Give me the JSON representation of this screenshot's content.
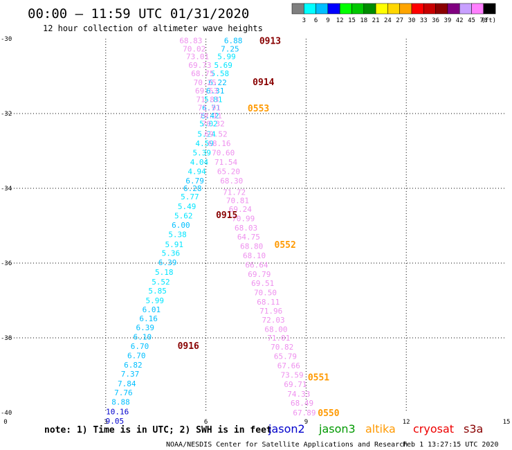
{
  "header": {
    "title": "00:00 – 11:59 UTC 01/31/2020",
    "subtitle": "12 hour collection of altimeter wave heights"
  },
  "colorbar": {
    "colors": [
      "#7f7f7f",
      "#00ffff",
      "#00bfff",
      "#0000ff",
      "#00ff00",
      "#00c800",
      "#008c00",
      "#ffff00",
      "#ffd700",
      "#ffa500",
      "#ff0000",
      "#c80000",
      "#8b0000",
      "#800080",
      "#c8a0ff",
      "#ff80ff",
      "#000000"
    ],
    "labels": [
      "3",
      "6",
      "9",
      "12",
      "15",
      "18",
      "21",
      "24",
      "27",
      "30",
      "33",
      "36",
      "39",
      "42",
      "45",
      "70"
    ],
    "unit": "(ft)"
  },
  "footer": {
    "note": "note: 1) Time is in UTC; 2) SWH is in feet",
    "legend": [
      {
        "name": "jason2",
        "color": "#0000cc"
      },
      {
        "name": "jason3",
        "color": "#009900"
      },
      {
        "name": "altika",
        "color": "#ff9900"
      },
      {
        "name": "cryosat",
        "color": "#ee0000"
      },
      {
        "name": "s3a",
        "color": "#880000"
      }
    ],
    "credit": "NOAA/NESDIS Center for Satellite Applications and Research",
    "timestamp": "Feb  1 13:27:15 UTC 2020"
  },
  "chart_data": {
    "type": "scatter",
    "x_ticks": [
      "0",
      "3",
      "6",
      "9",
      "12",
      "15"
    ],
    "y_ticks": [
      "-30",
      "-32",
      "-34",
      "-36",
      "-38",
      "-40"
    ],
    "xlim": [
      0,
      15
    ],
    "ylim": [
      -40,
      -30
    ],
    "grid": true,
    "labels": [
      {
        "x": 7.6,
        "y": -30.05,
        "text": "0913",
        "color": "#880000"
      },
      {
        "x": 7.4,
        "y": -31.15,
        "text": "0914",
        "color": "#880000"
      },
      {
        "x": 7.25,
        "y": -31.85,
        "text": "0553",
        "color": "#ff9900"
      },
      {
        "x": 6.3,
        "y": -34.7,
        "text": "0915",
        "color": "#880000"
      },
      {
        "x": 8.05,
        "y": -35.5,
        "text": "0552",
        "color": "#ff9900"
      },
      {
        "x": 5.15,
        "y": -38.2,
        "text": "0916",
        "color": "#880000"
      },
      {
        "x": 9.05,
        "y": -39.05,
        "text": "0551",
        "color": "#ff9900"
      },
      {
        "x": 9.35,
        "y": -40.0,
        "text": "0550",
        "color": "#ff9900"
      }
    ],
    "series": [
      {
        "name": "",
        "points": [
          {
            "x": 6.82,
            "y": -30.05,
            "v": "6.88",
            "c": "#00bfff"
          },
          {
            "x": 6.72,
            "y": -30.27,
            "v": "7.25",
            "c": "#00bfff"
          },
          {
            "x": 6.62,
            "y": -30.47,
            "v": "5.99",
            "c": "#00e5ff"
          },
          {
            "x": 6.52,
            "y": -30.7,
            "v": "5.69",
            "c": "#00e5ff"
          },
          {
            "x": 6.42,
            "y": -30.93,
            "v": "5.58",
            "c": "#00e5ff"
          },
          {
            "x": 6.35,
            "y": -31.17,
            "v": "6.22",
            "c": "#00bfff"
          },
          {
            "x": 6.28,
            "y": -31.39,
            "v": "6.31",
            "c": "#00bfff"
          },
          {
            "x": 6.22,
            "y": -31.62,
            "v": "5.81",
            "c": "#00e5ff"
          },
          {
            "x": 6.16,
            "y": -31.84,
            "v": "6.71",
            "c": "#00bfff"
          },
          {
            "x": 6.12,
            "y": -32.06,
            "v": "6.42",
            "c": "#00bfff"
          },
          {
            "x": 6.08,
            "y": -32.27,
            "v": "5.02",
            "c": "#00e5ff"
          },
          {
            "x": 6.02,
            "y": -32.55,
            "v": "5.24",
            "c": "#00e5ff"
          },
          {
            "x": 5.96,
            "y": -32.8,
            "v": "4.59",
            "c": "#00e5ff"
          },
          {
            "x": 5.88,
            "y": -33.05,
            "v": "5.39",
            "c": "#00e5ff"
          },
          {
            "x": 5.8,
            "y": -33.3,
            "v": "4.04",
            "c": "#00e5ff"
          },
          {
            "x": 5.73,
            "y": -33.55,
            "v": "4.94",
            "c": "#00e5ff"
          },
          {
            "x": 5.67,
            "y": -33.8,
            "v": "6.79",
            "c": "#00bfff"
          },
          {
            "x": 5.6,
            "y": -34.0,
            "v": "6.28",
            "c": "#00bfff"
          },
          {
            "x": 5.52,
            "y": -34.22,
            "v": "5.77",
            "c": "#00e5ff"
          },
          {
            "x": 5.43,
            "y": -34.48,
            "v": "5.49",
            "c": "#00e5ff"
          },
          {
            "x": 5.33,
            "y": -34.73,
            "v": "5.62",
            "c": "#00e5ff"
          },
          {
            "x": 5.25,
            "y": -34.98,
            "v": "6.00",
            "c": "#00bfff"
          },
          {
            "x": 5.15,
            "y": -35.23,
            "v": "5.38",
            "c": "#00e5ff"
          },
          {
            "x": 5.05,
            "y": -35.5,
            "v": "5.91",
            "c": "#00e5ff"
          },
          {
            "x": 4.95,
            "y": -35.73,
            "v": "5.36",
            "c": "#00e5ff"
          },
          {
            "x": 4.85,
            "y": -35.98,
            "v": "6.39",
            "c": "#00bfff"
          },
          {
            "x": 4.75,
            "y": -36.24,
            "v": "5.18",
            "c": "#00e5ff"
          },
          {
            "x": 4.65,
            "y": -36.5,
            "v": "5.52",
            "c": "#00e5ff"
          },
          {
            "x": 4.55,
            "y": -36.74,
            "v": "5.85",
            "c": "#00e5ff"
          },
          {
            "x": 4.47,
            "y": -37.0,
            "v": "5.99",
            "c": "#00e5ff"
          },
          {
            "x": 4.37,
            "y": -37.24,
            "v": "6.01",
            "c": "#00bfff"
          },
          {
            "x": 4.28,
            "y": -37.48,
            "v": "6.16",
            "c": "#00bfff"
          },
          {
            "x": 4.18,
            "y": -37.72,
            "v": "6.39",
            "c": "#00bfff"
          },
          {
            "x": 4.1,
            "y": -37.97,
            "v": "6.10",
            "c": "#00bfff"
          },
          {
            "x": 4.02,
            "y": -38.22,
            "v": "6.70",
            "c": "#00bfff"
          },
          {
            "x": 3.92,
            "y": -38.47,
            "v": "6.70",
            "c": "#00bfff"
          },
          {
            "x": 3.82,
            "y": -38.72,
            "v": "6.82",
            "c": "#00bfff"
          },
          {
            "x": 3.73,
            "y": -38.96,
            "v": "7.37",
            "c": "#00bfff"
          },
          {
            "x": 3.63,
            "y": -39.22,
            "v": "7.84",
            "c": "#00bfff"
          },
          {
            "x": 3.53,
            "y": -39.46,
            "v": "7.76",
            "c": "#00bfff"
          },
          {
            "x": 3.45,
            "y": -39.71,
            "v": "8.88",
            "c": "#00bfff"
          },
          {
            "x": 3.35,
            "y": -39.97,
            "v": "10.16",
            "c": "#0000cc"
          },
          {
            "x": 3.27,
            "y": -40.22,
            "v": "9.05",
            "c": "#0000cc"
          }
        ]
      },
      {
        "name": "",
        "points": [
          {
            "x": 5.55,
            "y": -30.05,
            "v": "68.83",
            "c": "#ee90ee"
          },
          {
            "x": 5.65,
            "y": -30.27,
            "v": "70.02",
            "c": "#ee90ee"
          },
          {
            "x": 5.75,
            "y": -30.47,
            "v": "73.01",
            "c": "#ee90ee"
          },
          {
            "x": 5.82,
            "y": -30.7,
            "v": "69.73",
            "c": "#ee90ee"
          },
          {
            "x": 5.9,
            "y": -30.93,
            "v": "68.75",
            "c": "#ee90ee"
          },
          {
            "x": 5.97,
            "y": -31.17,
            "v": "70.25",
            "c": "#ee90ee"
          },
          {
            "x": 6.02,
            "y": -31.39,
            "v": "69.53",
            "c": "#ee90ee"
          },
          {
            "x": 6.05,
            "y": -31.62,
            "v": "71.83",
            "c": "#ee90ee"
          },
          {
            "x": 6.1,
            "y": -31.84,
            "v": "71.91",
            "c": "#ee90ee"
          },
          {
            "x": 6.14,
            "y": -32.06,
            "v": "70.11",
            "c": "#ee90ee"
          },
          {
            "x": 6.22,
            "y": -32.27,
            "v": "70.32",
            "c": "#ee90ee"
          },
          {
            "x": 6.3,
            "y": -32.55,
            "v": "69.52",
            "c": "#ee90ee"
          },
          {
            "x": 6.4,
            "y": -32.8,
            "v": "68.16",
            "c": "#ee90ee"
          },
          {
            "x": 6.52,
            "y": -33.05,
            "v": "70.60",
            "c": "#ee90ee"
          },
          {
            "x": 6.6,
            "y": -33.3,
            "v": "71.54",
            "c": "#ee90ee"
          },
          {
            "x": 6.68,
            "y": -33.55,
            "v": "65.20",
            "c": "#ee90ee"
          },
          {
            "x": 6.77,
            "y": -33.8,
            "v": "68.30",
            "c": "#ee90ee"
          },
          {
            "x": 6.85,
            "y": -34.1,
            "v": "71.72",
            "c": "#ee90ee"
          },
          {
            "x": 6.95,
            "y": -34.32,
            "v": "70.81",
            "c": "#ee90ee"
          },
          {
            "x": 7.03,
            "y": -34.56,
            "v": "69.24",
            "c": "#ee90ee"
          },
          {
            "x": 7.12,
            "y": -34.81,
            "v": "70.99",
            "c": "#ee90ee"
          },
          {
            "x": 7.2,
            "y": -35.06,
            "v": "68.03",
            "c": "#ee90ee"
          },
          {
            "x": 7.28,
            "y": -35.3,
            "v": "64.75",
            "c": "#ee90ee"
          },
          {
            "x": 7.37,
            "y": -35.55,
            "v": "68.80",
            "c": "#ee90ee"
          },
          {
            "x": 7.45,
            "y": -35.8,
            "v": "68.10",
            "c": "#ee90ee"
          },
          {
            "x": 7.52,
            "y": -36.05,
            "v": "66.64",
            "c": "#ee90ee"
          },
          {
            "x": 7.6,
            "y": -36.3,
            "v": "69.79",
            "c": "#ee90ee"
          },
          {
            "x": 7.7,
            "y": -36.54,
            "v": "69.51",
            "c": "#ee90ee"
          },
          {
            "x": 7.78,
            "y": -36.79,
            "v": "70.50",
            "c": "#ee90ee"
          },
          {
            "x": 7.87,
            "y": -37.04,
            "v": "68.11",
            "c": "#ee90ee"
          },
          {
            "x": 7.95,
            "y": -37.28,
            "v": "71.96",
            "c": "#ee90ee"
          },
          {
            "x": 8.02,
            "y": -37.52,
            "v": "72.03",
            "c": "#ee90ee"
          },
          {
            "x": 8.1,
            "y": -37.77,
            "v": "68.00",
            "c": "#ee90ee"
          },
          {
            "x": 8.18,
            "y": -38.0,
            "v": "71.01",
            "c": "#ee90ee"
          },
          {
            "x": 8.28,
            "y": -38.24,
            "v": "70.82",
            "c": "#ee90ee"
          },
          {
            "x": 8.38,
            "y": -38.49,
            "v": "65.79",
            "c": "#ee90ee"
          },
          {
            "x": 8.48,
            "y": -38.74,
            "v": "67.66",
            "c": "#ee90ee"
          },
          {
            "x": 8.58,
            "y": -38.99,
            "v": "73.59",
            "c": "#ee90ee"
          },
          {
            "x": 8.68,
            "y": -39.24,
            "v": "69.71",
            "c": "#ee90ee"
          },
          {
            "x": 8.78,
            "y": -39.5,
            "v": "74.33",
            "c": "#ee90ee"
          },
          {
            "x": 8.88,
            "y": -39.74,
            "v": "68.49",
            "c": "#ee90ee"
          },
          {
            "x": 8.95,
            "y": -40.0,
            "v": "67.89",
            "c": "#ee90ee"
          }
        ]
      }
    ]
  }
}
